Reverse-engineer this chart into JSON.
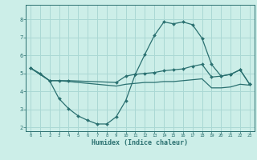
{
  "xlabel": "Humidex (Indice chaleur)",
  "bg_color": "#cceee8",
  "grid_color": "#aad8d4",
  "line_color": "#2a7070",
  "xlim": [
    -0.5,
    23.5
  ],
  "ylim": [
    1.8,
    8.8
  ],
  "yticks": [
    2,
    3,
    4,
    5,
    6,
    7,
    8
  ],
  "xticks": [
    0,
    1,
    2,
    3,
    4,
    5,
    6,
    7,
    8,
    9,
    10,
    11,
    12,
    13,
    14,
    15,
    16,
    17,
    18,
    19,
    20,
    21,
    22,
    23
  ],
  "curve1_x": [
    0,
    1,
    2,
    3,
    4,
    5,
    6,
    7,
    8,
    9,
    10,
    11,
    12,
    13,
    14,
    15,
    16,
    17,
    18,
    19,
    20,
    21,
    22,
    23
  ],
  "curve1_y": [
    5.3,
    5.0,
    4.6,
    3.6,
    3.05,
    2.65,
    2.4,
    2.2,
    2.2,
    2.6,
    3.5,
    4.95,
    6.05,
    7.1,
    7.85,
    7.75,
    7.85,
    7.7,
    6.95,
    5.5,
    4.85,
    4.95,
    5.2,
    4.4
  ],
  "curve2_x": [
    0,
    2,
    3,
    4,
    9,
    10,
    11,
    12,
    13,
    14,
    15,
    16,
    17,
    18,
    19,
    20,
    21,
    22,
    23
  ],
  "curve2_y": [
    5.3,
    4.6,
    4.6,
    4.6,
    4.5,
    4.85,
    4.95,
    5.0,
    5.05,
    5.15,
    5.2,
    5.25,
    5.4,
    5.5,
    4.8,
    4.85,
    4.95,
    5.2,
    4.4
  ],
  "curve3_x": [
    0,
    2,
    3,
    4,
    9,
    10,
    11,
    12,
    13,
    14,
    15,
    16,
    17,
    18,
    19,
    20,
    21,
    22,
    23
  ],
  "curve3_y": [
    5.3,
    4.6,
    4.6,
    4.55,
    4.3,
    4.4,
    4.45,
    4.5,
    4.5,
    4.55,
    4.55,
    4.6,
    4.65,
    4.7,
    4.2,
    4.2,
    4.25,
    4.4,
    4.35
  ]
}
